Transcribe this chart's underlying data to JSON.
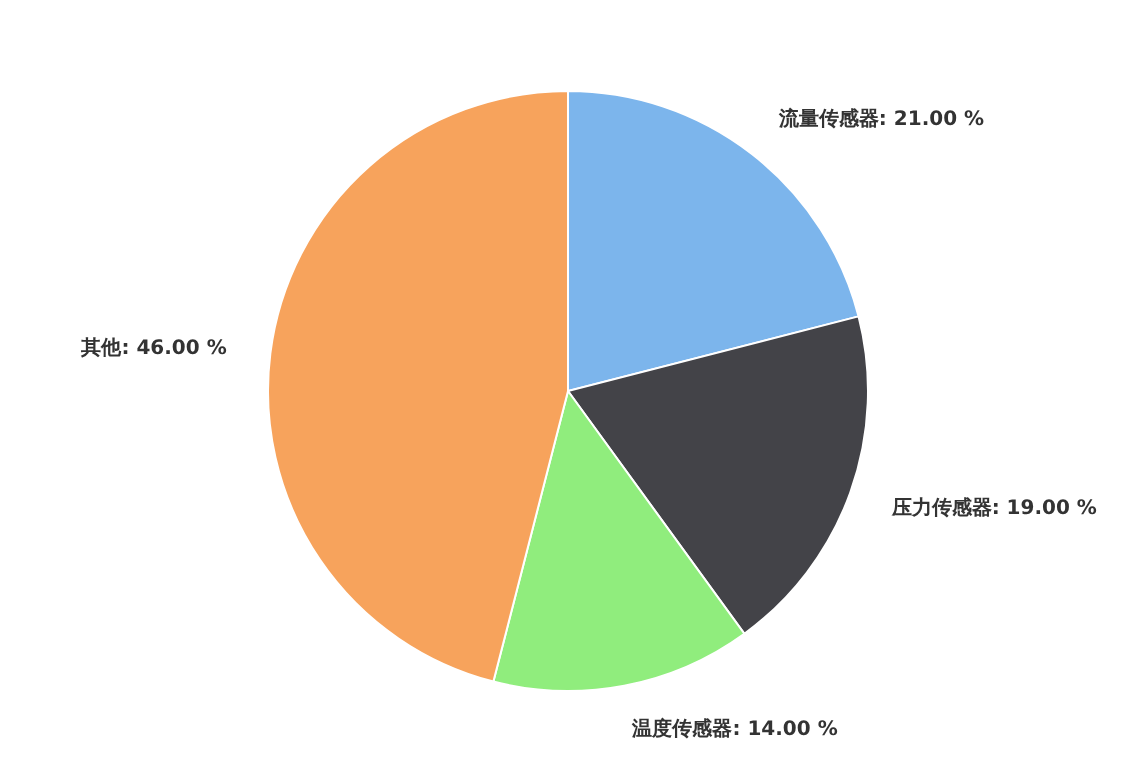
{
  "chart_data": {
    "type": "pie",
    "categories": [
      "流量传感器",
      "压力传感器",
      "温度传感器",
      "其他"
    ],
    "values": [
      21,
      19,
      14,
      46
    ],
    "value_labels": [
      "21.00 %",
      "19.00 %",
      "14.00 %",
      "46.00 %"
    ],
    "colors": [
      "#7cb5ec",
      "#434348",
      "#90ed7d",
      "#f7a35c"
    ]
  }
}
